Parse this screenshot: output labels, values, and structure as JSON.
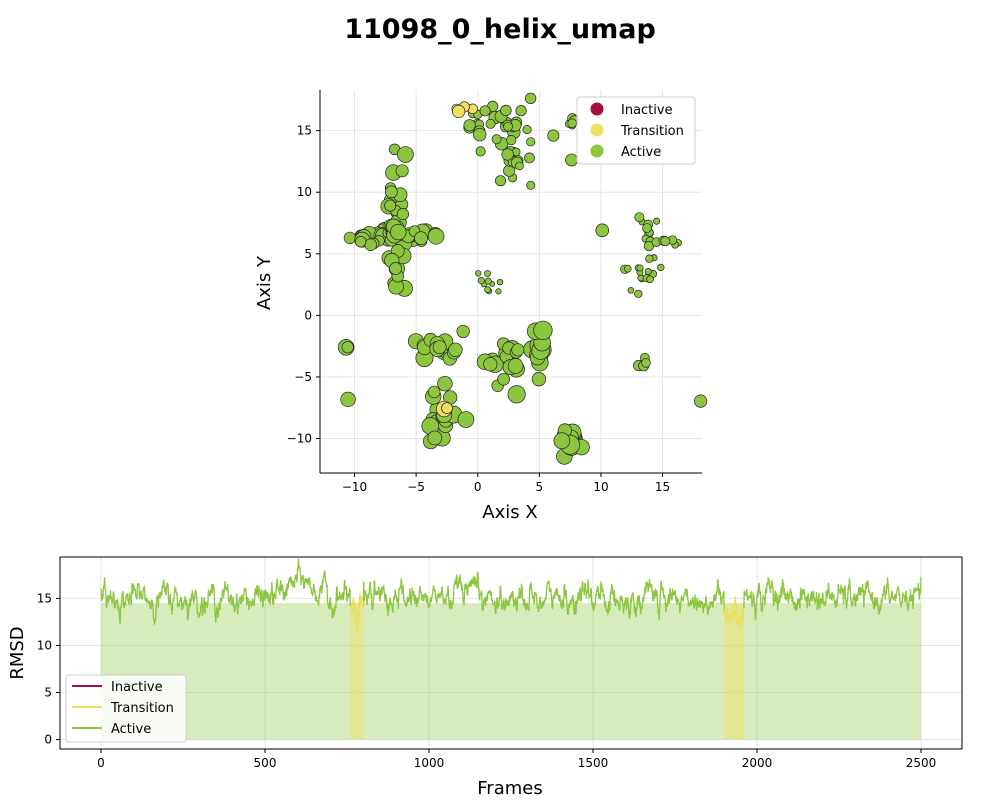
{
  "figure": {
    "title": "11098_0_helix_umap"
  },
  "colors": {
    "inactive": "#a50f43",
    "transition": "#f0e060",
    "active": "#8cc63f",
    "grid": "#e5e5e5"
  },
  "chart_data": [
    {
      "type": "scatter",
      "xlabel": "Axis X",
      "ylabel": "Axis Y",
      "xlim": [
        -12.8,
        18.2
      ],
      "ylim": [
        -12.8,
        18.3
      ],
      "xticks": [
        -10,
        -5,
        0,
        5,
        10,
        15
      ],
      "yticks": [
        -10,
        -5,
        0,
        5,
        10,
        15
      ],
      "grid": true,
      "legend": {
        "position": "top-right",
        "entries": [
          {
            "label": "Inactive",
            "color": "#a50f43"
          },
          {
            "label": "Transition",
            "color": "#f0e060"
          },
          {
            "label": "Active",
            "color": "#8cc63f"
          }
        ]
      },
      "clusters": [
        {
          "state": "Active",
          "cx": -6.6,
          "cy": 6.4,
          "sx": 1.8,
          "sy": 0.4,
          "n": 40,
          "size": 1.0
        },
        {
          "state": "Active",
          "cx": -6.6,
          "cy": 7.0,
          "sx": 0.35,
          "sy": 2.6,
          "n": 35,
          "size": 1.0
        },
        {
          "state": "Active",
          "cx": 1.2,
          "cy": 15.6,
          "sx": 1.4,
          "sy": 0.8,
          "n": 25,
          "size": 0.8
        },
        {
          "state": "Active",
          "cx": 3.8,
          "cy": 13.6,
          "sx": 1.3,
          "sy": 1.2,
          "n": 22,
          "size": 0.75
        },
        {
          "state": "Transition",
          "cx": -1.5,
          "cy": 16.7,
          "sx": 0.6,
          "sy": 0.2,
          "n": 4,
          "size": 0.8
        },
        {
          "state": "Active",
          "cx": 7.8,
          "cy": 15.6,
          "sx": 0.4,
          "sy": 0.2,
          "n": 5,
          "size": 0.6
        },
        {
          "state": "Active",
          "cx": 10.1,
          "cy": 6.9,
          "sx": 0.05,
          "sy": 0.05,
          "n": 1,
          "size": 1.2
        },
        {
          "state": "Active",
          "cx": 13.6,
          "cy": 6.4,
          "sx": 0.6,
          "sy": 0.9,
          "n": 12,
          "size": 0.6
        },
        {
          "state": "Active",
          "cx": 15.4,
          "cy": 6.0,
          "sx": 0.5,
          "sy": 0.15,
          "n": 6,
          "size": 0.6
        },
        {
          "state": "Active",
          "cx": 13.4,
          "cy": 3.2,
          "sx": 0.8,
          "sy": 0.8,
          "n": 14,
          "size": 0.55
        },
        {
          "state": "Active",
          "cx": 13.3,
          "cy": -3.7,
          "sx": 0.2,
          "sy": 0.3,
          "n": 4,
          "size": 0.7
        },
        {
          "state": "Active",
          "cx": 0.9,
          "cy": 2.6,
          "sx": 0.7,
          "sy": 0.5,
          "n": 10,
          "size": 0.4
        },
        {
          "state": "Active",
          "cx": -3.0,
          "cy": -2.7,
          "sx": 0.9,
          "sy": 0.5,
          "n": 14,
          "size": 1.1
        },
        {
          "state": "Active",
          "cx": 2.3,
          "cy": -4.0,
          "sx": 1.0,
          "sy": 1.2,
          "n": 20,
          "size": 1.1
        },
        {
          "state": "Active",
          "cx": 5.0,
          "cy": -2.6,
          "sx": 0.2,
          "sy": 0.8,
          "n": 12,
          "size": 1.2
        },
        {
          "state": "Active",
          "cx": -3.0,
          "cy": -8.5,
          "sx": 0.9,
          "sy": 1.0,
          "n": 16,
          "size": 1.1
        },
        {
          "state": "Transition",
          "cx": -2.6,
          "cy": -7.6,
          "sx": 0.2,
          "sy": 0.2,
          "n": 2,
          "size": 1.0
        },
        {
          "state": "Active",
          "cx": 7.8,
          "cy": -10.0,
          "sx": 0.7,
          "sy": 0.6,
          "n": 14,
          "size": 1.2
        },
        {
          "state": "Active",
          "cx": -10.6,
          "cy": -2.6,
          "sx": 0.05,
          "sy": 0.05,
          "n": 2,
          "size": 1.0
        },
        {
          "state": "Active",
          "cx": -10.5,
          "cy": -6.8,
          "sx": 0.05,
          "sy": 0.05,
          "n": 2,
          "size": 1.0
        },
        {
          "state": "Active",
          "cx": -1.2,
          "cy": -1.3,
          "sx": 0.05,
          "sy": 0.05,
          "n": 1,
          "size": 0.9
        },
        {
          "state": "Active",
          "cx": -2.6,
          "cy": -5.6,
          "sx": 0.05,
          "sy": 0.05,
          "n": 1,
          "size": 1.0
        },
        {
          "state": "Active",
          "cx": 18.0,
          "cy": -7.0,
          "sx": 0.05,
          "sy": 0.05,
          "n": 1,
          "size": 0.8
        }
      ]
    },
    {
      "type": "line",
      "xlabel": "Frames",
      "ylabel": "RMSD",
      "xlim": [
        -125,
        2625
      ],
      "ylim": [
        -1,
        19.4
      ],
      "xticks": [
        0,
        500,
        1000,
        1500,
        2000,
        2500
      ],
      "yticks": [
        0,
        5,
        10,
        15
      ],
      "grid": true,
      "legend": {
        "position": "bottom-left",
        "entries": [
          {
            "label": "Inactive",
            "color": "#a50f43"
          },
          {
            "label": "Transition",
            "color": "#f0e060"
          },
          {
            "label": "Active",
            "color": "#8cc63f"
          }
        ]
      },
      "frames": 2500,
      "baseline_rmsd": 15.0,
      "peak_regions": [
        {
          "start": 520,
          "end": 700,
          "peak": 17.0
        },
        {
          "start": 2000,
          "end": 2100,
          "peak": 16.0
        }
      ],
      "transition_regions": [
        {
          "start": 760,
          "end": 800
        },
        {
          "start": 1900,
          "end": 1960
        }
      ]
    }
  ]
}
